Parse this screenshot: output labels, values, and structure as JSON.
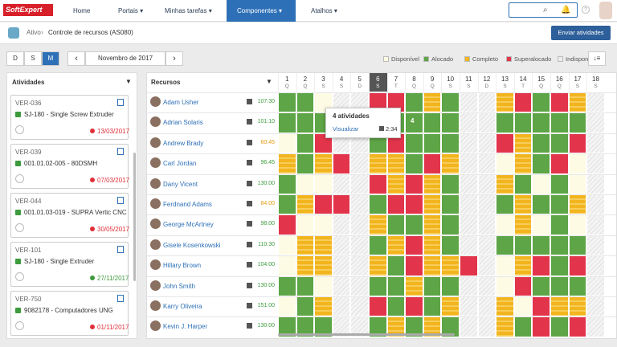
{
  "header": {
    "logo": "SoftExpert",
    "nav": [
      "Home",
      "Portais",
      "Minhas tarefas",
      "Componentes",
      "Atalhos"
    ],
    "active_nav": 3
  },
  "breadcrumb": {
    "parent": "Ativo",
    "current": "Controle de recursos (AS080)"
  },
  "send_button": "Enviar atividades",
  "toolbar": {
    "views": [
      "D",
      "S",
      "M"
    ],
    "active_view": 2,
    "month": "Novembro de 2017"
  },
  "legend": [
    {
      "label": "Disponível",
      "color": "#fdfbe4"
    },
    {
      "label": "Alocado",
      "color": "#5da546"
    },
    {
      "label": "Completo",
      "color": "#f2b51e"
    },
    {
      "label": "Superalocado",
      "color": "#e2354b"
    },
    {
      "label": "Indisponível",
      "color": "#ececec"
    }
  ],
  "activities": {
    "title": "Atividades",
    "cards": [
      {
        "code": "VER-036",
        "item": "SJ-180 - Single Screw Extruder",
        "date": "13/03/2017",
        "date_color": "#e0303a"
      },
      {
        "code": "VER-039",
        "item": "001.01.02-005 - 80DSMH",
        "date": "07/03/2017",
        "date_color": "#e0303a"
      },
      {
        "code": "VER-044",
        "item": "001.01.03-019 - SUPRA Vertic CNC",
        "date": "30/05/2017",
        "date_color": "#e0303a"
      },
      {
        "code": "VER-101",
        "item": "SJ-180 - Single Extruder",
        "date": "27/11/2017",
        "date_color": "#3d9a3d"
      },
      {
        "code": "VER-750",
        "item": "9082178 - Computadores UNG",
        "date": "01/11/2017",
        "date_color": "#e0303a"
      }
    ]
  },
  "resources": {
    "title": "Recursos",
    "today": 5,
    "days": [
      {
        "n": 1,
        "w": "Q"
      },
      {
        "n": 2,
        "w": "Q"
      },
      {
        "n": 3,
        "w": "S"
      },
      {
        "n": 4,
        "w": "S"
      },
      {
        "n": 5,
        "w": "D"
      },
      {
        "n": 6,
        "w": "S"
      },
      {
        "n": 7,
        "w": "T"
      },
      {
        "n": 8,
        "w": "Q"
      },
      {
        "n": 9,
        "w": "Q"
      },
      {
        "n": 10,
        "w": "S"
      },
      {
        "n": 11,
        "w": "S"
      },
      {
        "n": 12,
        "w": "D"
      },
      {
        "n": 13,
        "w": "S"
      },
      {
        "n": 14,
        "w": "T"
      },
      {
        "n": 15,
        "w": "Q"
      },
      {
        "n": 16,
        "w": "Q"
      },
      {
        "n": 17,
        "w": "S"
      },
      {
        "n": 18,
        "w": "S"
      }
    ],
    "rows": [
      {
        "name": "Adam Usher",
        "hours": "107:30",
        "hours_color": "#3d9a3d",
        "cells": [
          1,
          1,
          0,
          4,
          4,
          3,
          3,
          1,
          2,
          1,
          4,
          4,
          2,
          3,
          1,
          3,
          2,
          4
        ]
      },
      {
        "name": "Adrian Solaris",
        "hours": "101:10",
        "hours_color": "#3d9a3d",
        "cells": [
          1,
          1,
          1,
          4,
          4,
          1,
          1,
          1,
          1,
          1,
          4,
          4,
          1,
          1,
          1,
          1,
          1,
          4
        ]
      },
      {
        "name": "Andrew Brady",
        "hours": "60:45",
        "hours_color": "#e69a10",
        "cells": [
          0,
          1,
          3,
          4,
          4,
          1,
          3,
          1,
          1,
          1,
          4,
          4,
          3,
          2,
          1,
          1,
          3,
          4
        ]
      },
      {
        "name": "Carl Jordan",
        "hours": "96:45",
        "hours_color": "#3d9a3d",
        "cells": [
          2,
          1,
          2,
          3,
          4,
          2,
          2,
          1,
          3,
          2,
          4,
          4,
          0,
          2,
          1,
          3,
          0,
          4
        ]
      },
      {
        "name": "Dany Vicent",
        "hours": "130:00",
        "hours_color": "#3d9a3d",
        "cells": [
          1,
          0,
          0,
          4,
          4,
          3,
          2,
          3,
          2,
          1,
          4,
          4,
          2,
          1,
          0,
          1,
          0,
          4
        ]
      },
      {
        "name": "Ferdnand Adams",
        "hours": "84:00",
        "hours_color": "#e69a10",
        "cells": [
          1,
          2,
          3,
          3,
          4,
          1,
          3,
          3,
          2,
          1,
          4,
          4,
          1,
          2,
          1,
          1,
          2,
          4
        ]
      },
      {
        "name": "George McArtney",
        "hours": "98:00",
        "hours_color": "#3d9a3d",
        "cells": [
          3,
          0,
          0,
          4,
          4,
          2,
          1,
          1,
          2,
          1,
          4,
          4,
          0,
          2,
          0,
          1,
          0,
          4
        ]
      },
      {
        "name": "Gisele Kosenkowski",
        "hours": "110:30",
        "hours_color": "#3d9a3d",
        "cells": [
          0,
          2,
          2,
          4,
          4,
          1,
          2,
          3,
          2,
          1,
          4,
          4,
          1,
          1,
          1,
          1,
          1,
          4
        ]
      },
      {
        "name": "Hillary Brown",
        "hours": "104:00",
        "hours_color": "#3d9a3d",
        "cells": [
          0,
          2,
          2,
          4,
          4,
          2,
          1,
          3,
          2,
          2,
          3,
          4,
          0,
          2,
          3,
          1,
          3,
          4
        ]
      },
      {
        "name": "John Smith",
        "hours": "130:00",
        "hours_color": "#3d9a3d",
        "cells": [
          1,
          1,
          0,
          4,
          4,
          1,
          1,
          2,
          1,
          1,
          4,
          4,
          0,
          3,
          1,
          1,
          1,
          4
        ]
      },
      {
        "name": "Karry Oliveira",
        "hours": "151:00",
        "hours_color": "#3d9a3d",
        "cells": [
          0,
          1,
          2,
          4,
          4,
          3,
          1,
          3,
          1,
          2,
          4,
          4,
          2,
          0,
          3,
          2,
          2,
          4
        ]
      },
      {
        "name": "Kevin J. Harper",
        "hours": "130:00",
        "hours_color": "#3d9a3d",
        "cells": [
          1,
          1,
          1,
          4,
          4,
          1,
          2,
          1,
          2,
          1,
          4,
          4,
          2,
          1,
          3,
          1,
          3,
          4
        ]
      }
    ]
  },
  "popup": {
    "title": "4 atividades",
    "link": "Visualizar",
    "time": "2:34",
    "count": "4"
  }
}
